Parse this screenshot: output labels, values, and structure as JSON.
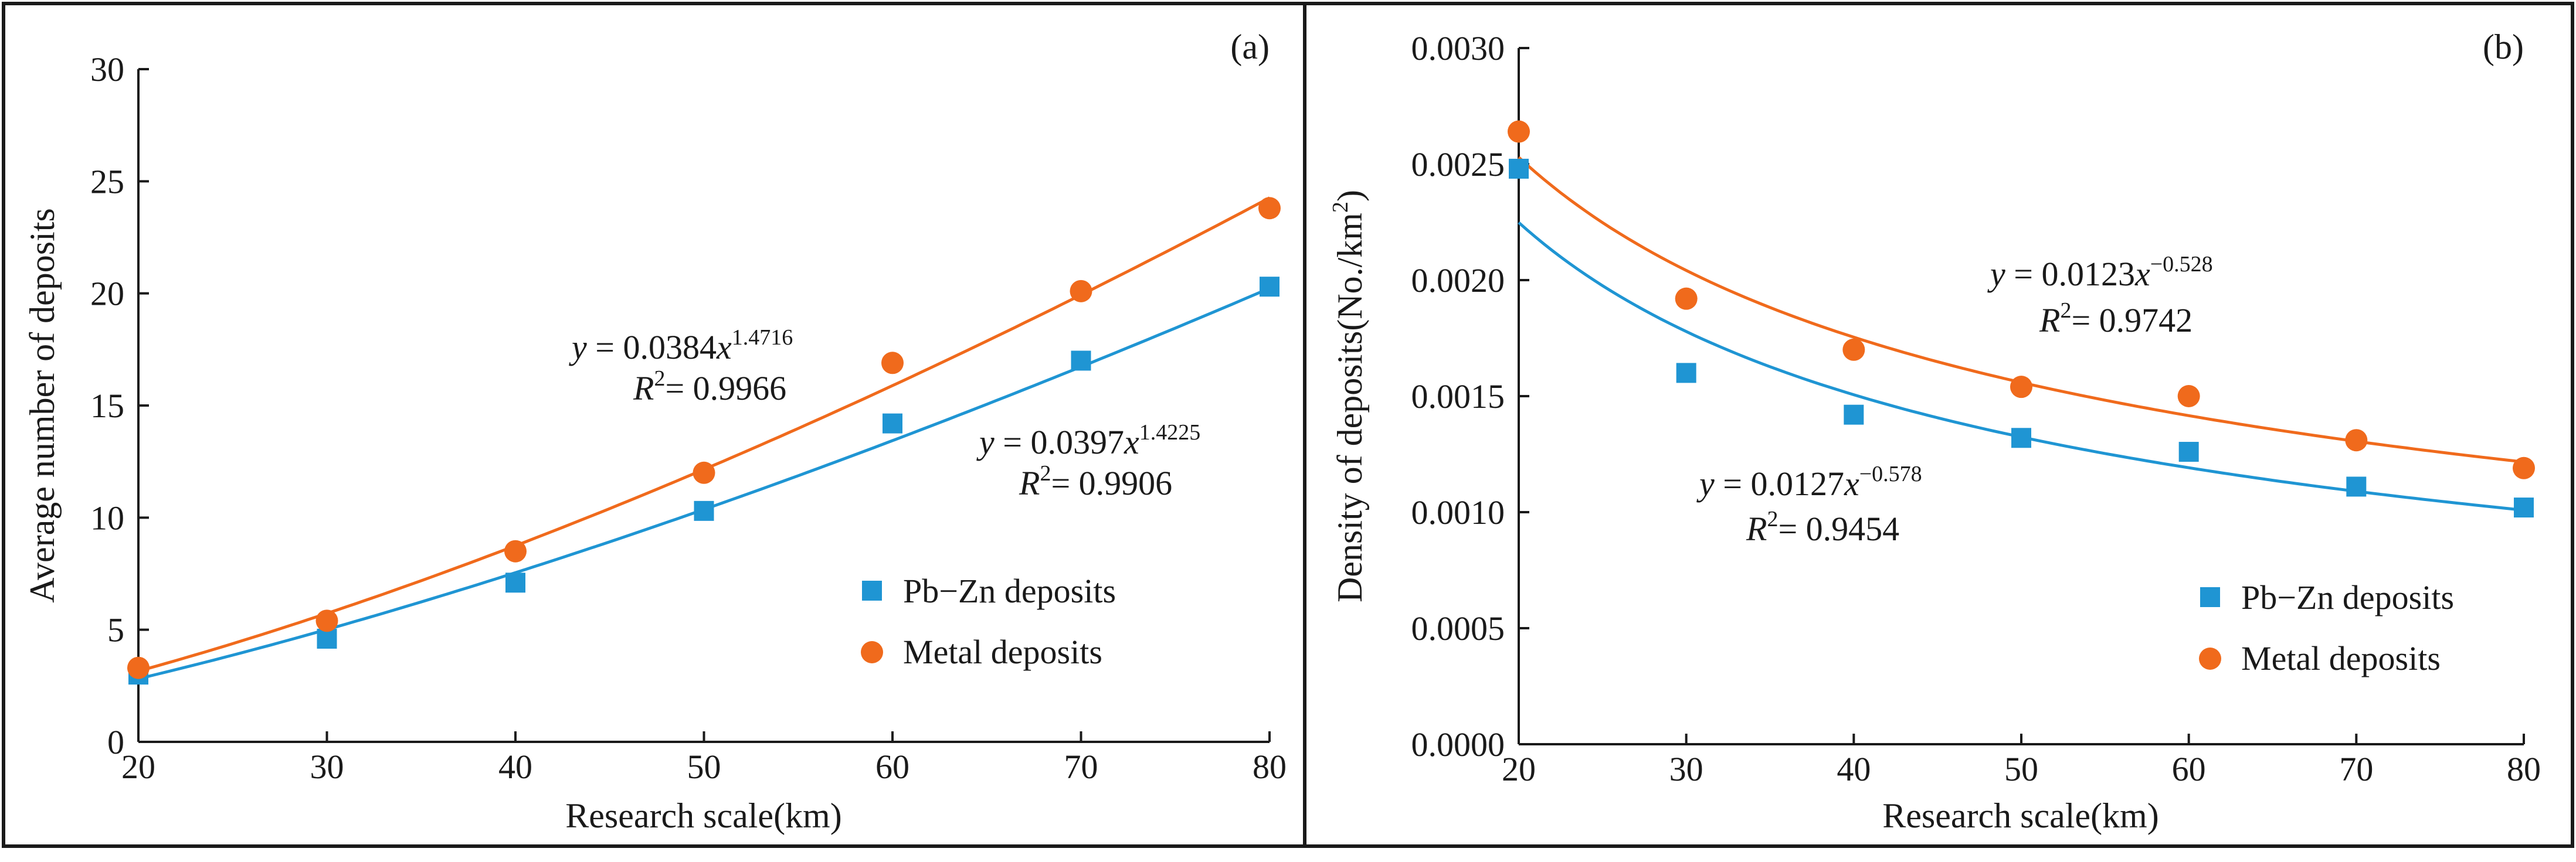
{
  "colors": {
    "pbzn": "#1f95d3",
    "metal": "#f06a1c",
    "axis": "#1a1a1a",
    "border": "#1a1a1a"
  },
  "chart_data": [
    {
      "type": "scatter",
      "panel_label": "(a)",
      "xlabel": "Research scale(km)",
      "ylabel": "Average number of deposits",
      "xlim": [
        20,
        80
      ],
      "ylim": [
        0,
        30
      ],
      "x_ticks": [
        "20",
        "30",
        "40",
        "50",
        "60",
        "70",
        "80"
      ],
      "y_ticks": [
        "0",
        "5",
        "10",
        "15",
        "20",
        "25",
        "30"
      ],
      "x": [
        20,
        30,
        40,
        50,
        60,
        70,
        80
      ],
      "series": [
        {
          "name": "Pb-Zn deposits",
          "marker": "square",
          "values": [
            3.0,
            4.6,
            7.1,
            10.3,
            14.2,
            17.0,
            20.3
          ],
          "fit": {
            "a": 0.0397,
            "b": 1.4225
          },
          "equation": {
            "lhs": "y",
            "coef": " = 0.0397",
            "var": "x",
            "exp": "1.4225",
            "r2_label": "R",
            "r2_exp": "2",
            "r2_value": "= 0.9906"
          }
        },
        {
          "name": "Metal deposits",
          "marker": "circle",
          "values": [
            3.3,
            5.4,
            8.5,
            12.0,
            16.9,
            20.1,
            23.8
          ],
          "fit": {
            "a": 0.0384,
            "b": 1.4716
          },
          "equation": {
            "lhs": "y",
            "coef": " = 0.0384",
            "var": "x",
            "exp": "1.4716",
            "r2_label": "R",
            "r2_exp": "2",
            "r2_value": "= 0.9966"
          }
        }
      ],
      "legend": [
        "Pb−Zn deposits",
        "Metal deposits"
      ],
      "legend_position": "lower-right"
    },
    {
      "type": "scatter",
      "panel_label": "(b)",
      "xlabel": "Research scale(km)",
      "ylabel_main": "Density of deposits(No./km",
      "ylabel_sup": "2",
      "ylabel_close": ")",
      "xlim": [
        20,
        80
      ],
      "ylim": [
        0,
        0.003
      ],
      "x_ticks": [
        "20",
        "30",
        "40",
        "50",
        "60",
        "70",
        "80"
      ],
      "y_ticks": [
        "0.0000",
        "0.0005",
        "0.0010",
        "0.0015",
        "0.0020",
        "0.0025",
        "0.0030"
      ],
      "x": [
        20,
        30,
        40,
        50,
        60,
        70,
        80
      ],
      "series": [
        {
          "name": "Pb-Zn deposits",
          "marker": "square",
          "values": [
            0.00248,
            0.0016,
            0.00142,
            0.00132,
            0.00126,
            0.00111,
            0.00102
          ],
          "fit": {
            "a": 0.0127,
            "b": -0.578
          },
          "equation": {
            "lhs": "y",
            "coef": " = 0.0127",
            "var": "x",
            "exp": "−0.578",
            "r2_label": "R",
            "r2_exp": "2",
            "r2_value": "= 0.9454"
          }
        },
        {
          "name": "Metal deposits",
          "marker": "circle",
          "values": [
            0.00264,
            0.00192,
            0.0017,
            0.00154,
            0.0015,
            0.00131,
            0.00119
          ],
          "fit": {
            "a": 0.0123,
            "b": -0.528
          },
          "equation": {
            "lhs": "y",
            "coef": " = 0.0123",
            "var": "x",
            "exp": "−0.528",
            "r2_label": "R",
            "r2_exp": "2",
            "r2_value": "= 0.9742"
          }
        }
      ],
      "legend": [
        "Pb−Zn deposits",
        "Metal deposits"
      ],
      "legend_position": "lower-right"
    }
  ]
}
